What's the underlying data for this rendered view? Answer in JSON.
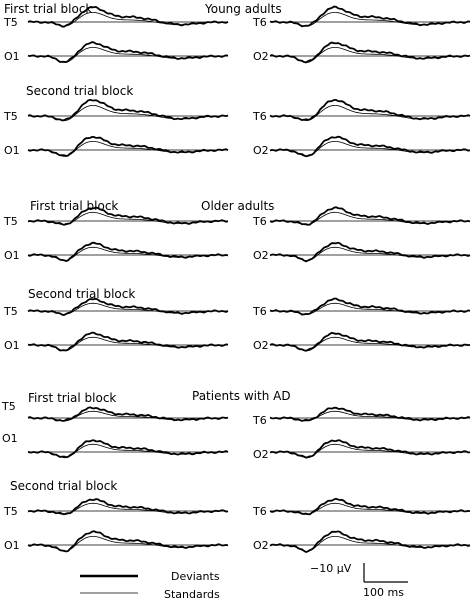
{
  "groups": [
    {
      "title": "Young adults",
      "blocks": [
        "First trial block",
        "Second trial block"
      ]
    },
    {
      "title": "Older adults",
      "blocks": [
        "First trial block",
        "Second trial block"
      ]
    },
    {
      "title": "Patients with AD",
      "blocks": [
        "First trial block",
        "Second trial block"
      ]
    }
  ],
  "channels": {
    "left": [
      "T5",
      "O1"
    ],
    "right": [
      "T6",
      "O2"
    ]
  },
  "legend": {
    "deviants": "Deviants",
    "standards": "Standards"
  },
  "scale": {
    "amplitude": "−10 μV",
    "time": "100 ms"
  },
  "colors": {
    "trace": "#000000",
    "baseline": "#000000"
  },
  "chart_data": {
    "type": "line",
    "description_free": true,
    "series": [
      {
        "name": "Deviants",
        "style": "thick"
      },
      {
        "name": "Standards",
        "style": "thin"
      }
    ]
  }
}
